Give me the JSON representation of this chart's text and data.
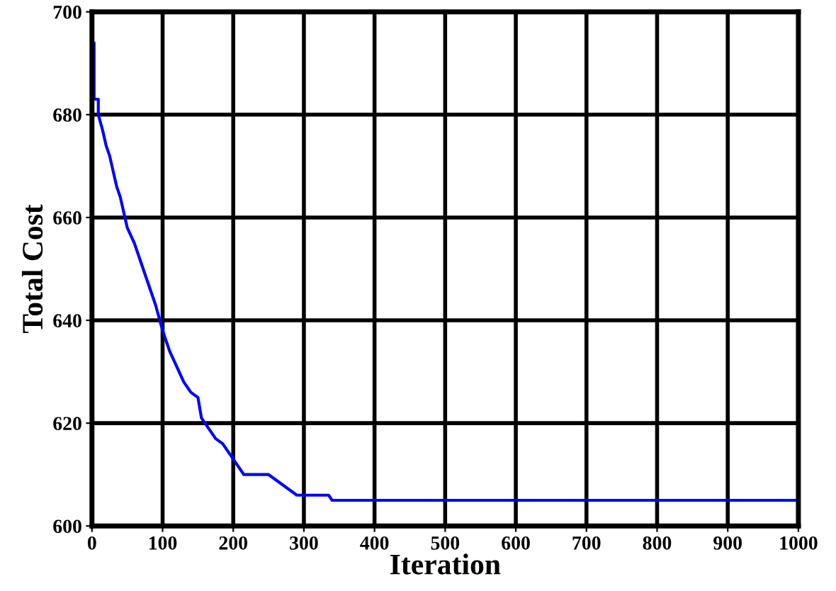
{
  "chart_data": {
    "type": "line",
    "xlabel": "Iteration",
    "ylabel": "Total Cost",
    "xlim": [
      0,
      1000
    ],
    "ylim": [
      600,
      700
    ],
    "xticks": [
      0,
      100,
      200,
      300,
      400,
      500,
      600,
      700,
      800,
      900,
      1000
    ],
    "yticks": [
      600,
      620,
      640,
      660,
      680,
      700
    ],
    "grid": true,
    "series": [
      {
        "color": "#0000ff",
        "x": [
          0,
          3,
          3,
          9,
          9,
          15,
          20,
          25,
          30,
          35,
          40,
          45,
          50,
          60,
          70,
          80,
          90,
          100,
          110,
          120,
          130,
          140,
          150,
          155,
          165,
          175,
          185,
          195,
          205,
          215,
          250,
          260,
          270,
          280,
          290,
          335,
          340,
          1000
        ],
        "values": [
          694,
          694,
          683,
          683,
          680,
          677,
          674,
          672,
          669,
          666,
          664,
          661,
          658,
          655,
          651,
          647,
          643,
          638,
          634,
          631,
          628,
          626,
          625,
          621,
          619,
          617,
          616,
          614,
          612,
          610,
          610,
          609,
          608,
          607,
          606,
          606,
          605,
          605
        ]
      }
    ]
  }
}
